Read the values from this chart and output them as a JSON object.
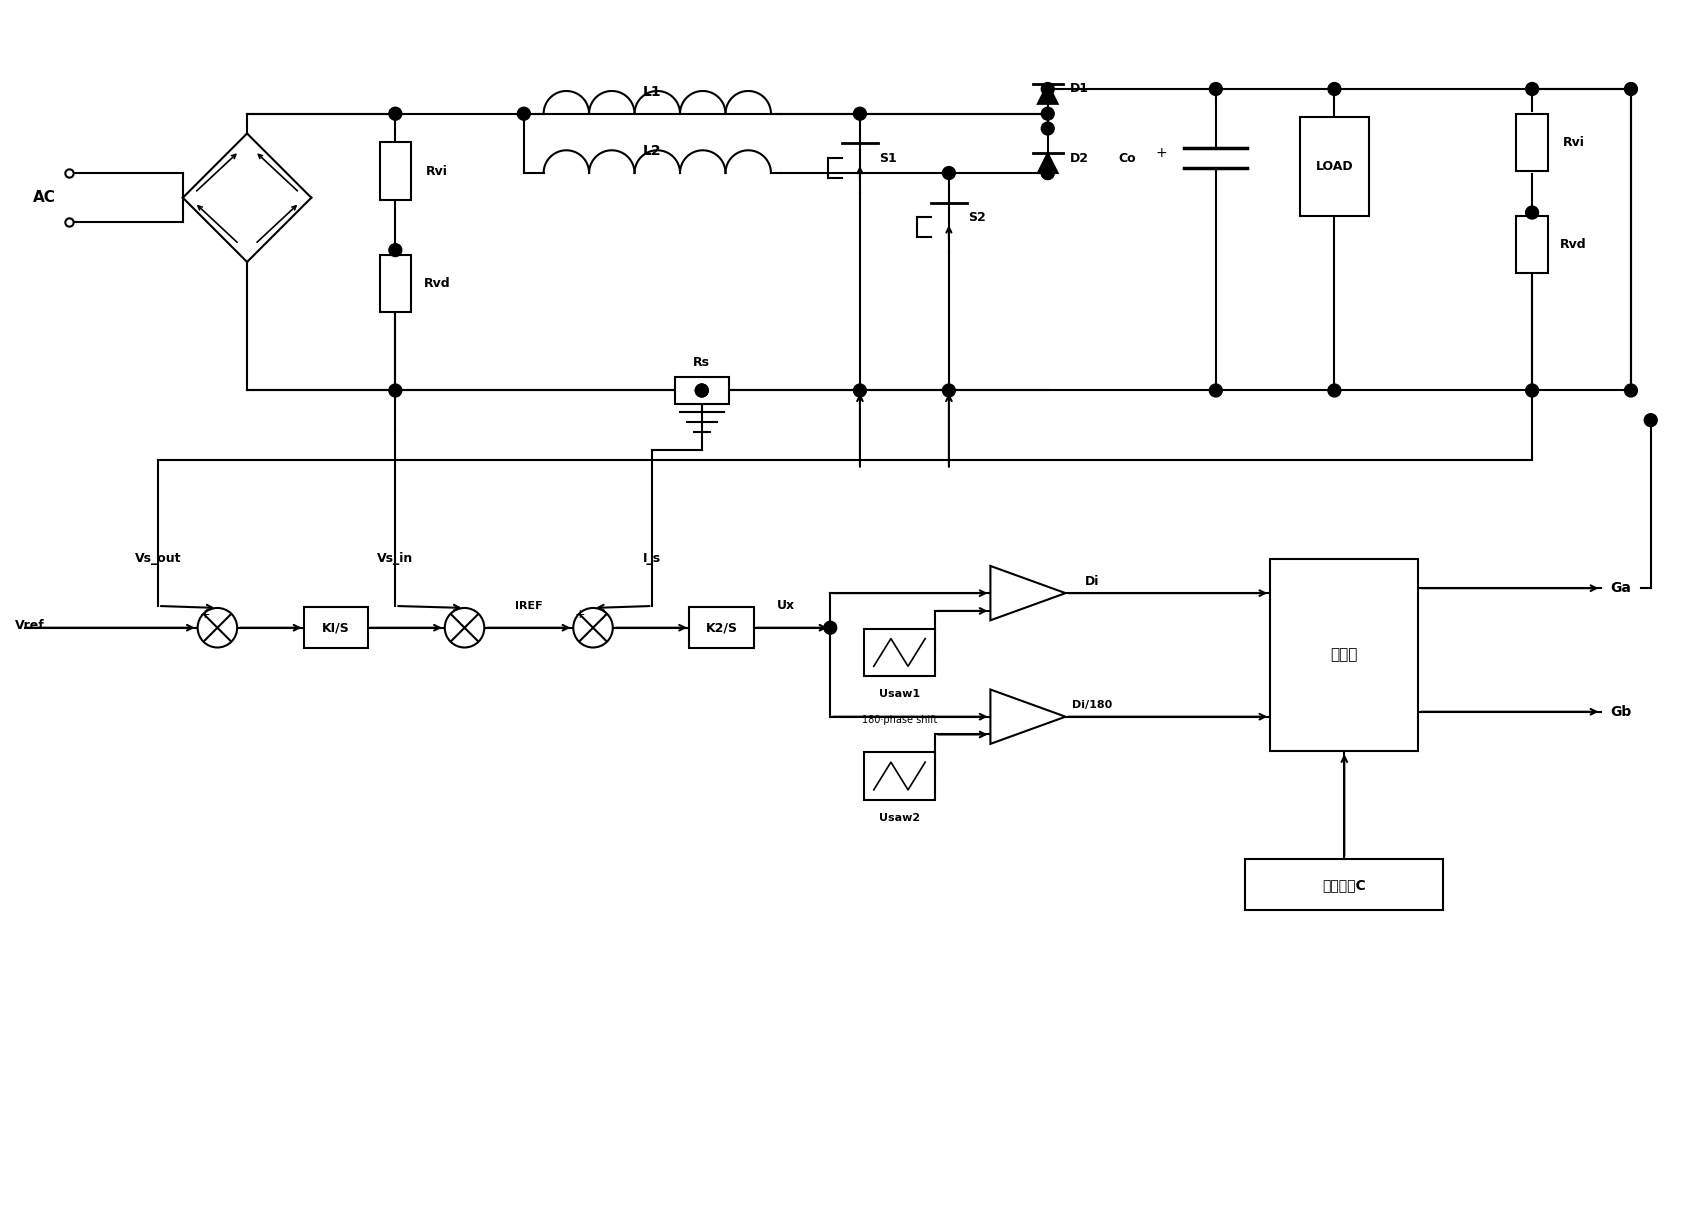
{
  "bg_color": "#ffffff",
  "lw": 1.5,
  "fig_w": 17.08,
  "fig_h": 12.08,
  "dpi": 100,
  "labels": {
    "AC": "AC",
    "L1": "L1",
    "L2": "L2",
    "Rvi_l": "Rvi",
    "Rvd_l": "Rvd",
    "Rs": "Rs",
    "D1": "D1",
    "D2": "D2",
    "S1": "S1",
    "S2": "S2",
    "Co": "Co",
    "LOAD": "LOAD",
    "Rvi_r": "Rvi",
    "Rvd_r": "Rvd",
    "Vs_out": "Vs_out",
    "Vs_in": "Vs_in",
    "I_s": "I_s",
    "Vref": "Vref",
    "KIS": "KI/S",
    "IREF": "IREF",
    "K2S": "K2/S",
    "Ux": "Ux",
    "Usaw1": "Usaw1",
    "phase": "180·phase shift",
    "Usaw2": "Usaw2",
    "Di": "Di",
    "Di180": "Di/180",
    "sel": "选择器",
    "Ga": "Ga",
    "Gb": "Gb",
    "selC": "选择信号C"
  }
}
